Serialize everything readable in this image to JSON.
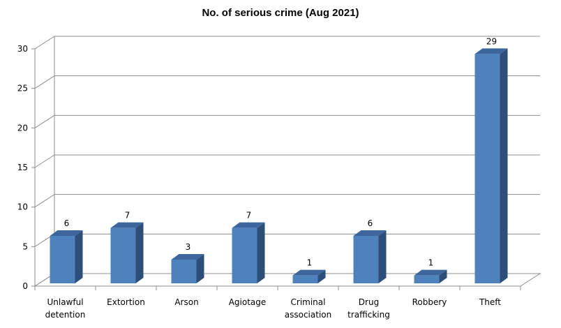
{
  "chart_data": {
    "type": "bar",
    "title": "No. of serious crime (Aug 2021)",
    "categories": [
      [
        "Unlawful",
        "detention"
      ],
      [
        "Extortion"
      ],
      [
        "Arson"
      ],
      [
        "Agiotage"
      ],
      [
        "Criminal",
        "association"
      ],
      [
        "Drug",
        "trafficking"
      ],
      [
        "Robbery"
      ],
      [
        "Theft"
      ]
    ],
    "values": [
      6,
      7,
      3,
      7,
      1,
      6,
      1,
      29
    ],
    "ylim": [
      0,
      30
    ],
    "yticks": [
      0,
      5,
      10,
      15,
      20,
      25,
      30
    ],
    "xlabel": "",
    "ylabel": "",
    "grid": true,
    "legend": "none",
    "colors": {
      "bar_front": "#4f81bd",
      "bar_side": "#2c4e78",
      "bar_top": "#3d679c",
      "grid": "#8c8c8c"
    }
  }
}
